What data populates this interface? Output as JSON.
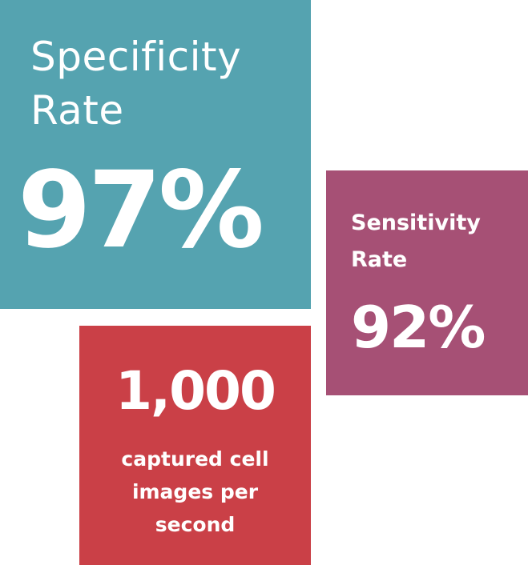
{
  "colors": {
    "background": "#ffffff",
    "teal": "#55a3b0",
    "plum": "#a65075",
    "red": "#ca4047",
    "text": "#ffffff"
  },
  "specificity": {
    "label_line1": "Specificity",
    "label_line2": "Rate",
    "value": "97%"
  },
  "sensitivity": {
    "label_line1": "Sensitivity",
    "label_line2": "Rate",
    "value": "92%"
  },
  "throughput": {
    "value": "1,000",
    "caption_line1": "captured cell",
    "caption_line2": "images per",
    "caption_line3": "second"
  }
}
